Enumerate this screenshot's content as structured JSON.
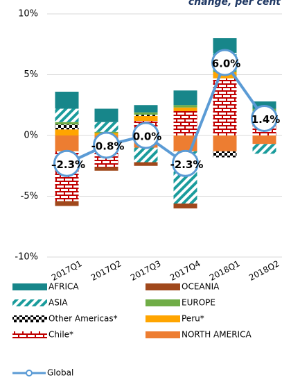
{
  "chart_data": {
    "type": "bar",
    "subtitle": "change, per cent",
    "categories": [
      "2017Q1",
      "2017Q2",
      "2017Q3",
      "2017Q4",
      "2018Q1",
      "2018Q2"
    ],
    "series": [
      {
        "name": "AFRICA",
        "color": "#17868a",
        "values": [
          1.4,
          1.1,
          0.6,
          1.2,
          1.2,
          0.6
        ]
      },
      {
        "name": "OCEANIA",
        "color": "#a0481c",
        "values": [
          -0.4,
          -0.3,
          -0.3,
          -0.4,
          0,
          0
        ]
      },
      {
        "name": "ASIA",
        "color": "#1a9c9c",
        "values": [
          1.1,
          0.8,
          -1.2,
          -4.3,
          1.3,
          -0.8
        ]
      },
      {
        "name": "EUROPE",
        "color": "#70ad47",
        "values": [
          0.2,
          0.1,
          0.2,
          0.2,
          0.3,
          0.3
        ]
      },
      {
        "name": "Other Americas*",
        "color": "#000000",
        "values": [
          0.4,
          0,
          0.1,
          0,
          -0.5,
          0
        ]
      },
      {
        "name": "Peru*",
        "color": "#ffa500",
        "values": [
          0.5,
          0.2,
          0.4,
          0.3,
          0.5,
          0.3
        ]
      },
      {
        "name": "Chile*",
        "color": "#c00000",
        "values": [
          -4.1,
          -1.4,
          1.2,
          2.0,
          4.7,
          1.6
        ]
      },
      {
        "name": "NORTH AMERICA",
        "color": "#ed7d31",
        "values": [
          -1.3,
          -1.2,
          -1.0,
          -1.3,
          -1.3,
          -0.7
        ]
      }
    ],
    "line": {
      "name": "Global",
      "color": "#5b9bd5",
      "values": [
        -2.3,
        -0.8,
        0.0,
        -2.3,
        6.0,
        1.4
      ],
      "value_labels": [
        "–2.3%",
        "-0.8%",
        "0.0%",
        "-2.3%",
        "6.0%",
        "1.4%"
      ]
    },
    "ylim": [
      -10,
      10
    ],
    "yticks": [
      {
        "value": -10,
        "label": "-10%"
      },
      {
        "value": -5,
        "label": "-5%"
      },
      {
        "value": 0,
        "label": "0%"
      },
      {
        "value": 5,
        "label": "5%"
      },
      {
        "value": 10,
        "label": "10%"
      }
    ],
    "grid": true
  }
}
